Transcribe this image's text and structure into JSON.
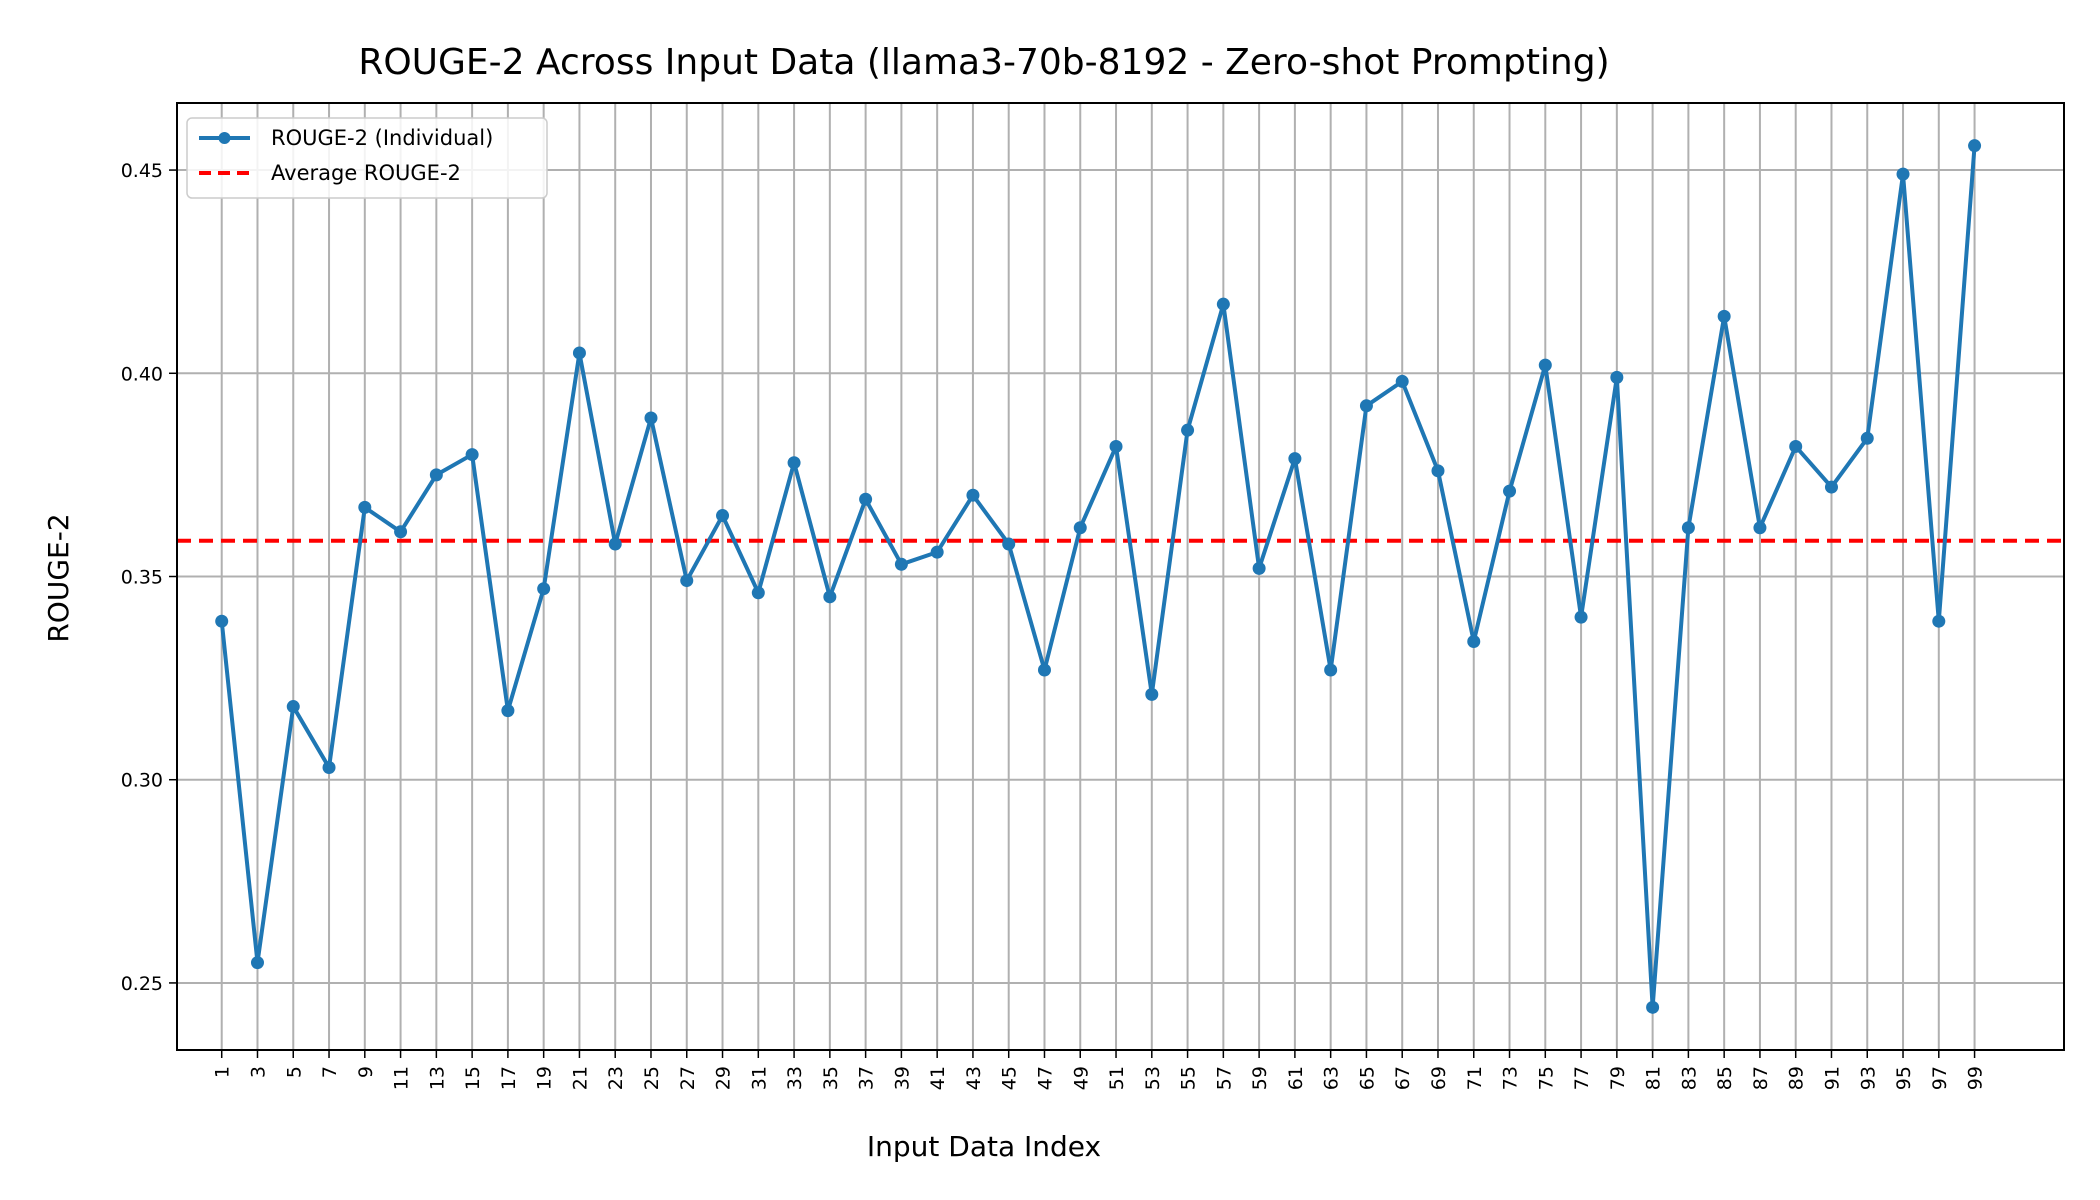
{
  "chart_data": {
    "type": "line",
    "title": "ROUGE-2 Across Input Data (llama3-70b-8192 - Zero-shot Prompting)",
    "xlabel": "Input Data Index",
    "ylabel": "ROUGE-2",
    "xlim": [
      -1.5,
      104
    ],
    "ylim": [
      0.2335,
      0.4665
    ],
    "x_ticks": [
      1,
      3,
      5,
      7,
      9,
      11,
      13,
      15,
      17,
      19,
      21,
      23,
      25,
      27,
      29,
      31,
      33,
      35,
      37,
      39,
      41,
      43,
      45,
      47,
      49,
      51,
      53,
      55,
      57,
      59,
      61,
      63,
      65,
      67,
      69,
      71,
      73,
      75,
      77,
      79,
      81,
      83,
      85,
      87,
      89,
      91,
      93,
      95,
      97,
      99
    ],
    "y_ticks": [
      0.25,
      0.3,
      0.35,
      0.4,
      0.45
    ],
    "y_tick_labels": [
      "0.25",
      "0.30",
      "0.35",
      "0.40",
      "0.45"
    ],
    "grid": true,
    "legend_position": "top-left",
    "series": [
      {
        "name": "ROUGE-2 (Individual)",
        "color": "#1f77b4",
        "style": "line-with-markers",
        "x": [
          1,
          3,
          5,
          7,
          9,
          11,
          13,
          15,
          17,
          19,
          21,
          23,
          25,
          27,
          29,
          31,
          33,
          35,
          37,
          39,
          41,
          43,
          45,
          47,
          49,
          51,
          53,
          55,
          57,
          59,
          61,
          63,
          65,
          67,
          69,
          71,
          73,
          75,
          77,
          79,
          81,
          83,
          85,
          87,
          89,
          91,
          93,
          95,
          97,
          99
        ],
        "values": [
          0.339,
          0.255,
          0.318,
          0.303,
          0.367,
          0.361,
          0.375,
          0.38,
          0.317,
          0.347,
          0.405,
          0.358,
          0.389,
          0.349,
          0.365,
          0.346,
          0.378,
          0.345,
          0.369,
          0.353,
          0.356,
          0.37,
          0.358,
          0.327,
          0.362,
          0.382,
          0.321,
          0.386,
          0.417,
          0.352,
          0.379,
          0.327,
          0.392,
          0.398,
          0.376,
          0.334,
          0.371,
          0.402,
          0.34,
          0.399,
          0.244,
          0.362,
          0.414,
          0.362,
          0.382,
          0.372,
          0.384,
          0.449,
          0.339,
          0.456
        ]
      },
      {
        "name": "Average ROUGE-2",
        "color": "#ff0000",
        "style": "dashed-horizontal",
        "value": 0.3588
      }
    ]
  }
}
